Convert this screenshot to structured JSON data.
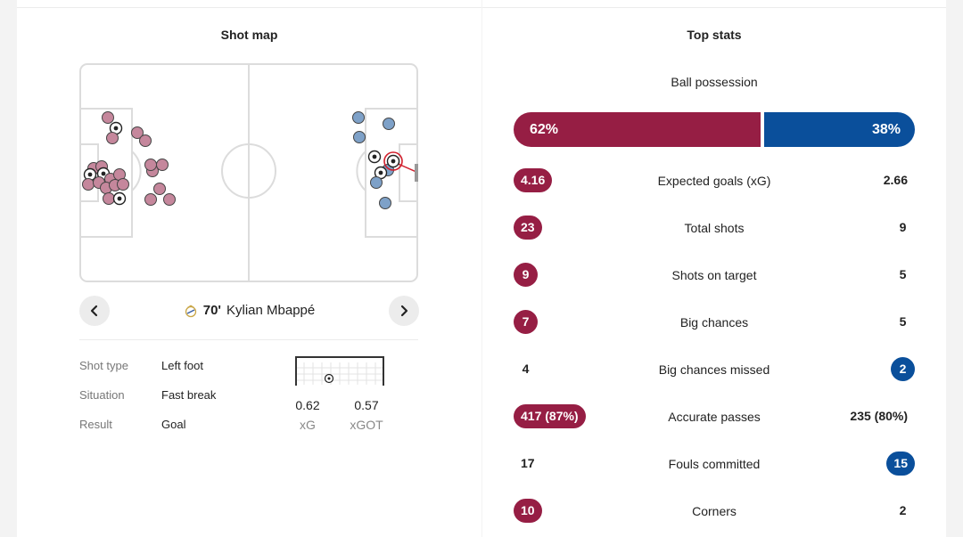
{
  "shot_map": {
    "title": "Shot map",
    "selected_shot": {
      "minute": "70'",
      "player": "Kylian Mbappé",
      "details": [
        {
          "key": "Shot type",
          "value": "Left foot"
        },
        {
          "key": "Situation",
          "value": "Fast break"
        },
        {
          "key": "Result",
          "value": "Goal"
        }
      ],
      "xg": "0.62",
      "xg_label": "xG",
      "xgot": "0.57",
      "xgot_label": "xGOT"
    },
    "colors": {
      "home": "#c5879c",
      "away": "#7ea1c8",
      "highlight": "#d11f2c"
    }
  },
  "top_stats": {
    "title": "Top stats",
    "possession": {
      "label": "Ball possession",
      "home": "62%",
      "away": "38%",
      "home_fraction": 0.62
    },
    "rows": [
      {
        "label": "Expected goals (xG)",
        "home": "4.16",
        "away": "2.66",
        "highlight": "home"
      },
      {
        "label": "Total shots",
        "home": "23",
        "away": "9",
        "highlight": "home"
      },
      {
        "label": "Shots on target",
        "home": "9",
        "away": "5",
        "highlight": "home"
      },
      {
        "label": "Big chances",
        "home": "7",
        "away": "5",
        "highlight": "home"
      },
      {
        "label": "Big chances missed",
        "home": "4",
        "away": "2",
        "highlight": "away"
      },
      {
        "label": "Accurate passes",
        "home": "417 (87%)",
        "away": "235 (80%)",
        "highlight": "home"
      },
      {
        "label": "Fouls committed",
        "home": "17",
        "away": "15",
        "highlight": "away"
      },
      {
        "label": "Corners",
        "home": "10",
        "away": "2",
        "highlight": "home"
      }
    ],
    "colors": {
      "home": "#961e44",
      "away": "#0a4f9b"
    }
  }
}
